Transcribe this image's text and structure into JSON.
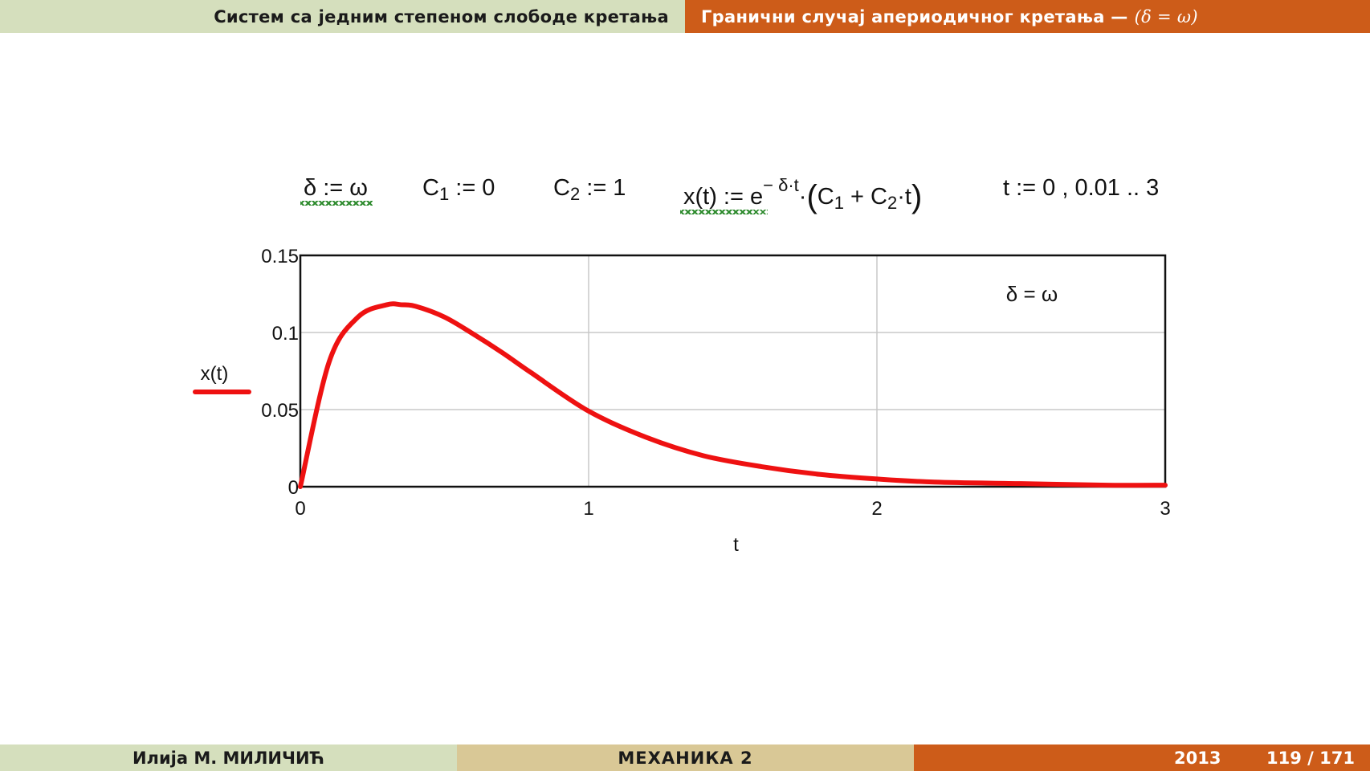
{
  "header": {
    "left_title": "Систем са једним степеном слободе кретања",
    "right_title": "Гранични случај апериодичног кретања —",
    "right_condition": "(δ = ω)"
  },
  "formulas": {
    "delta_def": "δ := ω",
    "c1_def": {
      "name": "C",
      "sub": "1",
      "rest": " := 0"
    },
    "c2_def": {
      "name": "C",
      "sub": "2",
      "rest": " := 1"
    },
    "x_def": {
      "lhs": "x(t) := e",
      "exponent": "− δ·t",
      "dot": "·",
      "c1": "C",
      "c1_sub": "1",
      "plus": " + ",
      "c2": "C",
      "c2_sub": "2",
      "tail": "·t"
    },
    "t_range": "t := 0 , 0.01 .. 3"
  },
  "chart_data": {
    "type": "line",
    "title": "",
    "xlabel": "t",
    "ylabel": "x(t)",
    "xlim": [
      0,
      3
    ],
    "ylim": [
      0,
      0.15
    ],
    "xticks": [
      "0",
      "1",
      "2",
      "3"
    ],
    "yticks": [
      "0",
      "0.05",
      "0.1",
      "0.15"
    ],
    "grid": true,
    "legend": "left of plot",
    "annotation": "δ = ω",
    "series_color": "#ee1111",
    "series": [
      {
        "name": "x(t)",
        "x": [
          0,
          0.1,
          0.2,
          0.3,
          0.35,
          0.4,
          0.5,
          0.6,
          0.7,
          0.8,
          1.0,
          1.2,
          1.4,
          1.6,
          1.8,
          2.0,
          2.2,
          2.5,
          2.8,
          3.0
        ],
        "y": [
          0,
          0.081,
          0.11,
          0.118,
          0.118,
          0.117,
          0.11,
          0.099,
          0.087,
          0.074,
          0.049,
          0.032,
          0.02,
          0.013,
          0.008,
          0.005,
          0.003,
          0.002,
          0.001,
          0.001
        ]
      }
    ]
  },
  "footer": {
    "author": "Илија М. МИЛИЧИЋ",
    "course": "МЕХАНИКА 2",
    "year": "2013",
    "page": "119 / 171"
  }
}
